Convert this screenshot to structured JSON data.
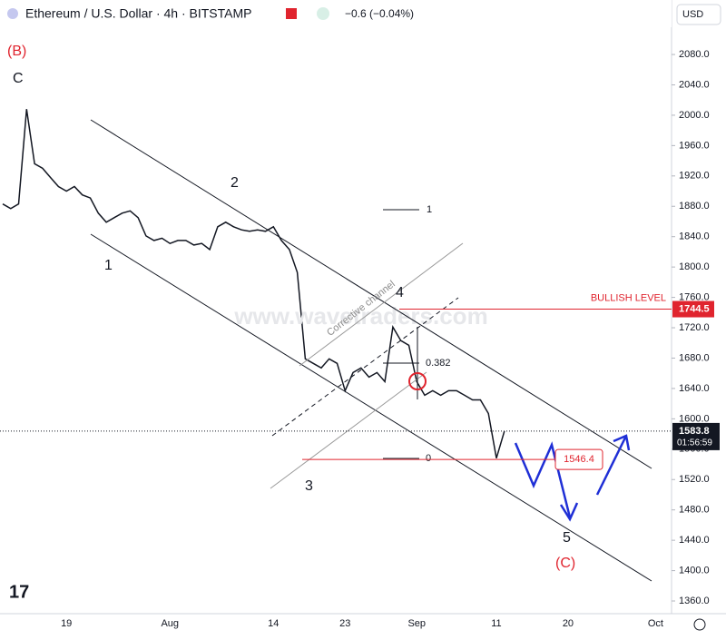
{
  "header": {
    "symbol": "Ethereum / U.S. Dollar · 4h · BITSTAMP",
    "change": "−0.6 (−0.04%)",
    "currency": "USD"
  },
  "chart_data": {
    "type": "line",
    "color": "#131722",
    "categories": [
      null,
      null,
      null,
      null,
      null,
      null,
      null,
      null,
      "19",
      null,
      null,
      null,
      null,
      null,
      null,
      null,
      null,
      null,
      null,
      null,
      null,
      "Aug",
      null,
      null,
      null,
      null,
      null,
      null,
      null,
      null,
      null,
      null,
      null,
      null,
      "14",
      null,
      null,
      null,
      null,
      null,
      null,
      null,
      null,
      "23",
      null,
      null,
      null,
      null,
      null,
      null,
      null,
      null,
      "Sep",
      null,
      null,
      null,
      null,
      null,
      null,
      null,
      null,
      null,
      "11",
      null,
      null,
      null,
      null,
      null,
      null,
      null,
      null,
      "20",
      null,
      null,
      null,
      null,
      null,
      null,
      null,
      null,
      null,
      null,
      "Oct",
      null,
      null
    ],
    "values": [
      1883,
      1877,
      1883,
      2008,
      1936,
      1930,
      1918,
      1906,
      1900,
      1906,
      1895,
      1891,
      1871,
      1859,
      1865,
      1871,
      1874,
      1865,
      1841,
      1835,
      1838,
      1831,
      1835,
      1835,
      1829,
      1831,
      1823,
      1853,
      1859,
      1853,
      1849,
      1847,
      1849,
      1847,
      1853,
      1835,
      1823,
      1793,
      1679,
      1673,
      1667,
      1679,
      1673,
      1637,
      1661,
      1667,
      1655,
      1661,
      1649,
      1721,
      1703,
      1697,
      1649,
      1631,
      1637,
      1631,
      1637,
      1637,
      1631,
      1625,
      1625,
      1607,
      1548,
      1583.8,
      null,
      null,
      null,
      null,
      null,
      null,
      null,
      null,
      null,
      null,
      null,
      null,
      null,
      null,
      null,
      null,
      null,
      null,
      null,
      null,
      null
    ],
    "ylim": [
      1338.5,
      2151.8
    ],
    "yticks": [
      {
        "value": 1360,
        "label": "1360.0"
      },
      {
        "value": 1400,
        "label": "1400.0"
      },
      {
        "value": 1440,
        "label": "1440.0"
      },
      {
        "value": 1480,
        "label": "1480.0"
      },
      {
        "value": 1520,
        "label": "1520.0"
      },
      {
        "value": 1560,
        "label": "1560.0"
      },
      {
        "value": 1600,
        "label": "1600.0"
      },
      {
        "value": 1640,
        "label": "1640.0"
      },
      {
        "value": 1680,
        "label": "1680.0"
      },
      {
        "value": 1720,
        "label": "1720.0"
      },
      {
        "value": 1760,
        "label": "1760.0"
      },
      {
        "value": 1800,
        "label": "1800.0"
      },
      {
        "value": 1840,
        "label": "1840.0"
      },
      {
        "value": 1880,
        "label": "1880.0"
      },
      {
        "value": 1920,
        "label": "1920.0"
      },
      {
        "value": 1960,
        "label": "1960.0"
      },
      {
        "value": 2000,
        "label": "2000.0"
      },
      {
        "value": 2040,
        "label": "2040.0"
      },
      {
        "value": 2080,
        "label": "2080.0"
      }
    ],
    "bullish_level": {
      "label": "BULLISH LEVEL",
      "value": 1744.5
    },
    "target_level": 1546.4,
    "last_price": {
      "value": 1583.8,
      "countdown": "01:56:59"
    },
    "fib_labels": [
      "1",
      "0.382",
      "0"
    ],
    "waves": [
      "(B)",
      "C",
      "1",
      "2",
      "3",
      "4",
      "5",
      "(C)"
    ],
    "channel_label": "Corrective channel",
    "watermark": "www.wavetraders.com"
  }
}
